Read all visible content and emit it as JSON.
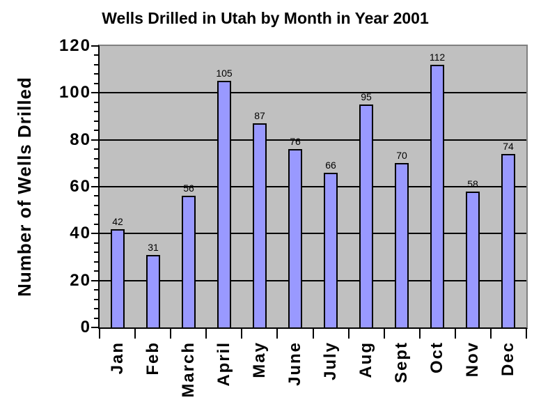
{
  "title": "Wells Drilled in Utah by Month in Year 2001",
  "y_axis_title": "Number of Wells Drilled",
  "colors": {
    "bar_fill": "#9999FF",
    "bar_border": "#000000",
    "plot_background": "#C0C0C0",
    "plot_border": "#808080",
    "gridline": "#000000",
    "text": "#000000",
    "page_background": "#FFFFFF"
  },
  "chart_data": {
    "type": "bar",
    "title": "Wells Drilled in Utah by Month in Year 2001",
    "xlabel": "",
    "ylabel": "Number of Wells Drilled",
    "categories": [
      "Jan",
      "Feb",
      "March",
      "April",
      "May",
      "June",
      "July",
      "Aug",
      "Sept",
      "Oct",
      "Nov",
      "Dec"
    ],
    "values": [
      42,
      31,
      56,
      105,
      87,
      76,
      66,
      95,
      70,
      112,
      58,
      74
    ],
    "ylim": [
      0,
      120
    ],
    "y_major_step": 20,
    "y_minor_step": 4,
    "y_tick_labels": [
      "0",
      "20",
      "40",
      "60",
      "80",
      "100",
      "120"
    ],
    "grid": true,
    "data_labels": true,
    "legend": "none"
  }
}
